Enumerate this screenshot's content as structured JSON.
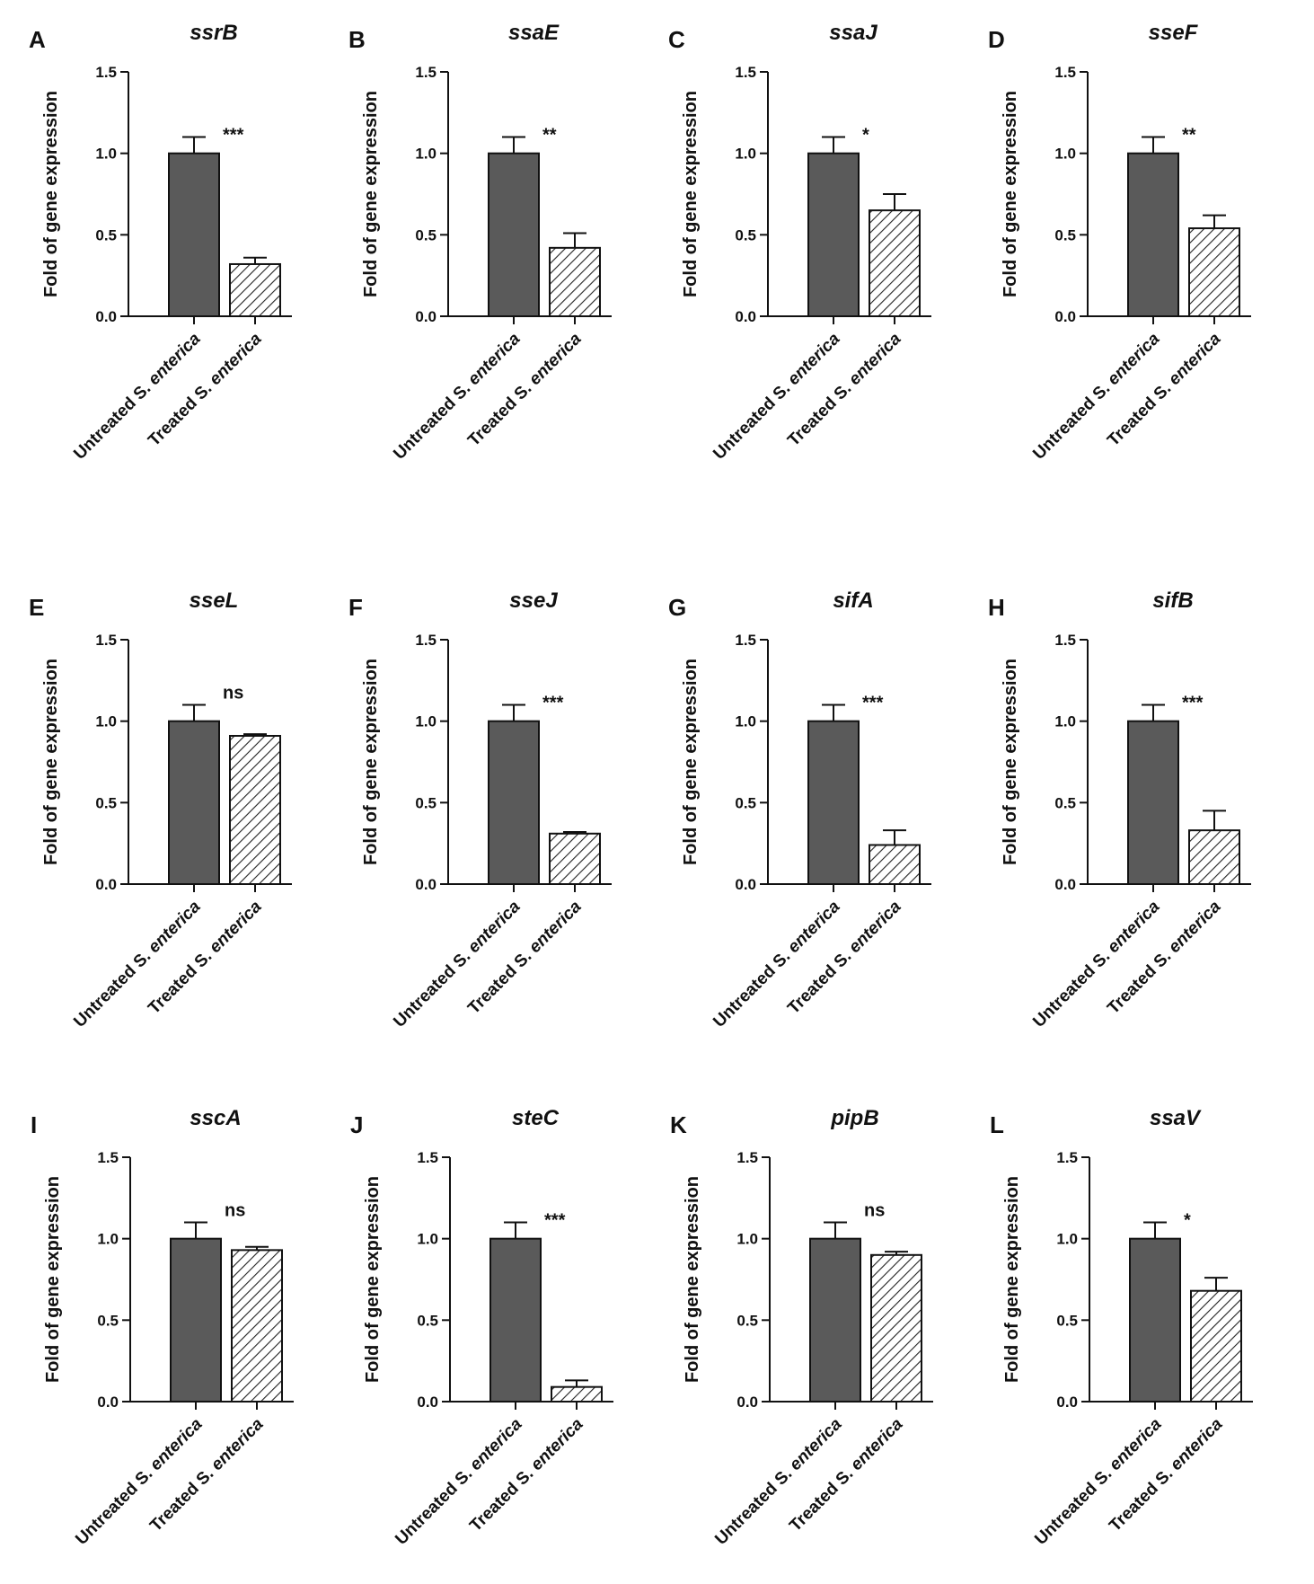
{
  "figure": {
    "y_axis_label": "Fold of gene expression",
    "categories": [
      {
        "prefix": "Untreated S. ",
        "italic": "enterica"
      },
      {
        "prefix": "Treated S. ",
        "italic": "enterica"
      }
    ],
    "untreated_fill": "#5a5a5a",
    "hatch_color": "#222222"
  },
  "chart_data": [
    {
      "type": "bar",
      "panel": "A",
      "title": "ssrB",
      "ylim": [
        0,
        1.5
      ],
      "yticks": [
        "0.0",
        "0.5",
        "1.0",
        "1.5"
      ],
      "ylabel": "Fold of gene expression",
      "categories": [
        "Untreated S. enterica",
        "Treated S. enterica"
      ],
      "values": [
        1.0,
        0.32
      ],
      "errors": [
        0.1,
        0.04
      ],
      "significance": "***"
    },
    {
      "type": "bar",
      "panel": "B",
      "title": "ssaE",
      "ylim": [
        0,
        1.5
      ],
      "yticks": [
        "0.0",
        "0.5",
        "1.0",
        "1.5"
      ],
      "ylabel": "Fold of gene expression",
      "categories": [
        "Untreated S. enterica",
        "Treated S. enterica"
      ],
      "values": [
        1.0,
        0.42
      ],
      "errors": [
        0.1,
        0.09
      ],
      "significance": "**"
    },
    {
      "type": "bar",
      "panel": "C",
      "title": "ssaJ",
      "ylim": [
        0,
        1.5
      ],
      "yticks": [
        "0.0",
        "0.5",
        "1.0",
        "1.5"
      ],
      "ylabel": "Fold of gene expression",
      "categories": [
        "Untreated S. enterica",
        "Treated S. enterica"
      ],
      "values": [
        1.0,
        0.65
      ],
      "errors": [
        0.1,
        0.1
      ],
      "significance": "*"
    },
    {
      "type": "bar",
      "panel": "D",
      "title": "sseF",
      "ylim": [
        0,
        1.5
      ],
      "yticks": [
        "0.0",
        "0.5",
        "1.0",
        "1.5"
      ],
      "ylabel": "Fold of gene expression",
      "categories": [
        "Untreated S. enterica",
        "Treated S. enterica"
      ],
      "values": [
        1.0,
        0.54
      ],
      "errors": [
        0.1,
        0.08
      ],
      "significance": "**"
    },
    {
      "type": "bar",
      "panel": "E",
      "title": "sseL",
      "ylim": [
        0,
        1.5
      ],
      "yticks": [
        "0.0",
        "0.5",
        "1.0",
        "1.5"
      ],
      "ylabel": "Fold of gene expression",
      "categories": [
        "Untreated S. enterica",
        "Treated S. enterica"
      ],
      "values": [
        1.0,
        0.91
      ],
      "errors": [
        0.1,
        0.01
      ],
      "significance": "ns"
    },
    {
      "type": "bar",
      "panel": "F",
      "title": "sseJ",
      "ylim": [
        0,
        1.5
      ],
      "yticks": [
        "0.0",
        "0.5",
        "1.0",
        "1.5"
      ],
      "ylabel": "Fold of gene expression",
      "categories": [
        "Untreated S. enterica",
        "Treated S. enterica"
      ],
      "values": [
        1.0,
        0.31
      ],
      "errors": [
        0.1,
        0.01
      ],
      "significance": "***"
    },
    {
      "type": "bar",
      "panel": "G",
      "title": "sifA",
      "ylim": [
        0,
        1.5
      ],
      "yticks": [
        "0.0",
        "0.5",
        "1.0",
        "1.5"
      ],
      "ylabel": "Fold of gene expression",
      "categories": [
        "Untreated S. enterica",
        "Treated S. enterica"
      ],
      "values": [
        1.0,
        0.24
      ],
      "errors": [
        0.1,
        0.09
      ],
      "significance": "***"
    },
    {
      "type": "bar",
      "panel": "H",
      "title": "sifB",
      "ylim": [
        0,
        1.5
      ],
      "yticks": [
        "0.0",
        "0.5",
        "1.0",
        "1.5"
      ],
      "ylabel": "Fold of gene expression",
      "categories": [
        "Untreated S. enterica",
        "Treated S. enterica"
      ],
      "values": [
        1.0,
        0.33
      ],
      "errors": [
        0.1,
        0.12
      ],
      "significance": "***"
    },
    {
      "type": "bar",
      "panel": "I",
      "title": "sscA",
      "ylim": [
        0,
        1.5
      ],
      "yticks": [
        "0.0",
        "0.5",
        "1.0",
        "1.5"
      ],
      "ylabel": "Fold of gene expression",
      "categories": [
        "Untreated S. enterica",
        "Treated S. enterica"
      ],
      "values": [
        1.0,
        0.93
      ],
      "errors": [
        0.1,
        0.02
      ],
      "significance": "ns"
    },
    {
      "type": "bar",
      "panel": "J",
      "title": "steC",
      "ylim": [
        0,
        1.5
      ],
      "yticks": [
        "0.0",
        "0.5",
        "1.0",
        "1.5"
      ],
      "ylabel": "Fold of gene expression",
      "categories": [
        "Untreated S. enterica",
        "Treated S. enterica"
      ],
      "values": [
        1.0,
        0.09
      ],
      "errors": [
        0.1,
        0.04
      ],
      "significance": "***"
    },
    {
      "type": "bar",
      "panel": "K",
      "title": "pipB",
      "ylim": [
        0,
        1.5
      ],
      "yticks": [
        "0.0",
        "0.5",
        "1.0",
        "1.5"
      ],
      "ylabel": "Fold of gene expression",
      "categories": [
        "Untreated S. enterica",
        "Treated S. enterica"
      ],
      "values": [
        1.0,
        0.9
      ],
      "errors": [
        0.1,
        0.02
      ],
      "significance": "ns"
    },
    {
      "type": "bar",
      "panel": "L",
      "title": "ssaV",
      "ylim": [
        0,
        1.5
      ],
      "yticks": [
        "0.0",
        "0.5",
        "1.0",
        "1.5"
      ],
      "ylabel": "Fold of gene expression",
      "categories": [
        "Untreated S. enterica",
        "Treated S. enterica"
      ],
      "values": [
        1.0,
        0.68
      ],
      "errors": [
        0.1,
        0.08
      ],
      "significance": "*"
    }
  ]
}
